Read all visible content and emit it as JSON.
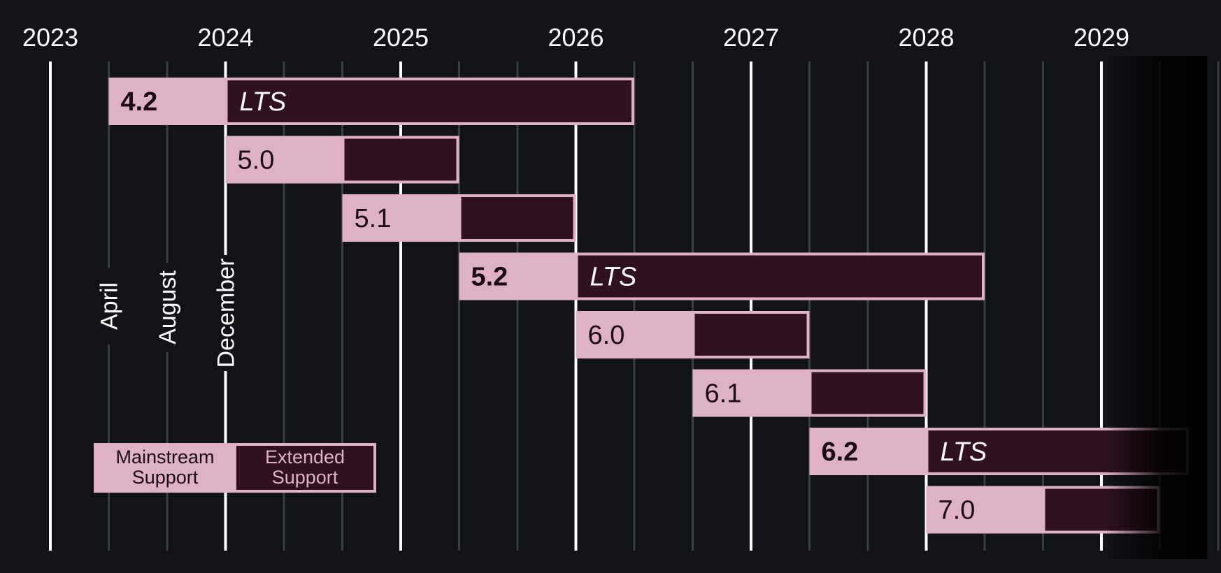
{
  "chart_data": {
    "type": "gantt",
    "x_axis": {
      "min_year": 2023,
      "max_year": 2029.5,
      "year_ticks": [
        "2023",
        "2024",
        "2025",
        "2026",
        "2027",
        "2028",
        "2029"
      ],
      "minor_ticks_every_months": 4
    },
    "month_annotations": [
      {
        "label": "April",
        "year": 2023.3333
      },
      {
        "label": "August",
        "year": 2023.6667
      },
      {
        "label": "December",
        "year": 2024.0
      }
    ],
    "releases": [
      {
        "version": "4.2",
        "lts": true,
        "mainstream_start": 2023.3333,
        "extended_start": 2024.0,
        "end": 2026.3333
      },
      {
        "version": "5.0",
        "lts": false,
        "mainstream_start": 2024.0,
        "extended_start": 2024.6667,
        "end": 2025.3333
      },
      {
        "version": "5.1",
        "lts": false,
        "mainstream_start": 2024.6667,
        "extended_start": 2025.3333,
        "end": 2026.0
      },
      {
        "version": "5.2",
        "lts": true,
        "mainstream_start": 2025.3333,
        "extended_start": 2026.0,
        "end": 2028.3333
      },
      {
        "version": "6.0",
        "lts": false,
        "mainstream_start": 2026.0,
        "extended_start": 2026.6667,
        "end": 2027.3333
      },
      {
        "version": "6.1",
        "lts": false,
        "mainstream_start": 2026.6667,
        "extended_start": 2027.3333,
        "end": 2028.0
      },
      {
        "version": "6.2",
        "lts": true,
        "mainstream_start": 2027.3333,
        "extended_start": 2028.0,
        "end": 2030.3333
      },
      {
        "version": "7.0",
        "lts": false,
        "mainstream_start": 2028.0,
        "extended_start": 2028.6667,
        "end": 2029.3333
      }
    ],
    "lts_label": "LTS",
    "legend": {
      "mainstream": {
        "line1": "Mainstream",
        "line2": "Support"
      },
      "extended": {
        "line1": "Extended",
        "line2": "Support"
      }
    },
    "colors": {
      "background": "#111317",
      "mainstream_fill": "#dfb1c7",
      "extended_fill": "#2f111f",
      "bar_border": "#dfb1c7",
      "major_grid": "#ffffff",
      "minor_grid": "#3a3d44",
      "text_on_light": "#1a0d12",
      "text_on_dark": "#ffffff"
    },
    "fade_right_edge": true
  }
}
